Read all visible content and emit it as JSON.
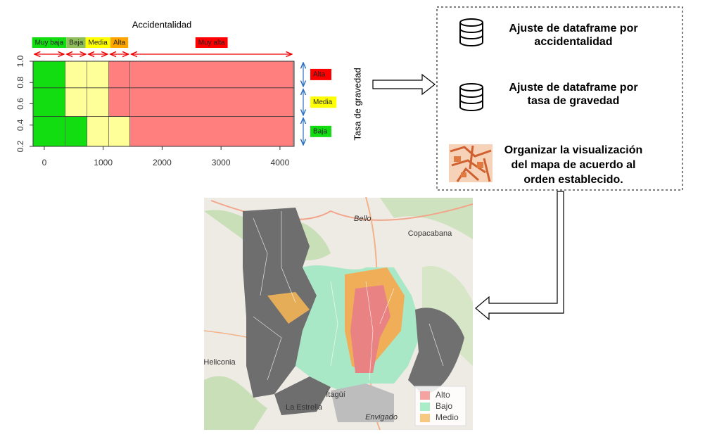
{
  "chart": {
    "title": "Accidentalidad",
    "ylabel": "Tasa de gravedad",
    "xlim": [
      -190,
      4240
    ],
    "ylim": [
      0.2,
      1.0
    ],
    "xticks": [
      0,
      1000,
      2000,
      3000,
      4000
    ],
    "yticks": [
      0.2,
      0.4,
      0.6,
      0.8,
      {
        "value": 1.0,
        "label": "1.0"
      }
    ],
    "hlines": [
      0.75,
      0.48
    ],
    "cells": [
      {
        "x": [
          -190,
          357
        ],
        "y": [
          0.2,
          1.0
        ],
        "color": "#11dd11"
      },
      {
        "x": [
          357,
          726
        ],
        "y": [
          0.48,
          1.0
        ],
        "color": "#ffff99"
      },
      {
        "x": [
          357,
          726
        ],
        "y": [
          0.2,
          0.48
        ],
        "color": "#11dd11"
      },
      {
        "x": [
          726,
          1095
        ],
        "y": [
          0.2,
          1.0
        ],
        "color": "#ffff99"
      },
      {
        "x": [
          1095,
          1452
        ],
        "y": [
          0.48,
          1.0
        ],
        "color": "#ff7f7f"
      },
      {
        "x": [
          1095,
          1452
        ],
        "y": [
          0.2,
          0.48
        ],
        "color": "#ffff99"
      },
      {
        "x": [
          1452,
          4226
        ],
        "y": [
          0.2,
          1.0
        ],
        "color": "#ff7f7f"
      }
    ],
    "bands": [
      {
        "label": "Muy baja",
        "color": "#11dd11",
        "x": [
          -190,
          357
        ]
      },
      {
        "label": "Baja",
        "color": "#8fbf5a",
        "x": [
          357,
          726
        ]
      },
      {
        "label": "Media",
        "color": "#ffff00",
        "x": [
          726,
          1095
        ]
      },
      {
        "label": "Alta",
        "color": "#ffa500",
        "x": [
          1095,
          1452
        ]
      },
      {
        "label": "Muy alta",
        "color": "#ff0000",
        "x": [
          1452,
          4226
        ]
      }
    ],
    "levels": [
      {
        "label": "Alta",
        "color": "#ff0000",
        "y": [
          0.75,
          1.0
        ]
      },
      {
        "label": "Media",
        "color": "#ffff00",
        "y": [
          0.48,
          0.75
        ]
      },
      {
        "label": "Baja",
        "color": "#11dd11",
        "y": [
          0.2,
          0.48
        ]
      }
    ]
  },
  "steps": [
    {
      "lines": [
        "Ajuste de dataframe por",
        "accidentalidad"
      ]
    },
    {
      "lines": [
        "Ajuste de dataframe por",
        "tasa de gravedad"
      ]
    },
    {
      "lines": [
        "Organizar la visualización",
        "del mapa de acuerdo al",
        "orden establecido."
      ]
    }
  ],
  "map": {
    "places": [
      "Bello",
      "Copacabana",
      "Heliconia",
      "Itagüí",
      "La Estrella",
      "Envigado"
    ],
    "legend": [
      {
        "label": "Alto",
        "color": "#f4a3a0"
      },
      {
        "label": "Bajo",
        "color": "#a8ecc8"
      },
      {
        "label": "Medio",
        "color": "#f7c87f"
      }
    ]
  }
}
